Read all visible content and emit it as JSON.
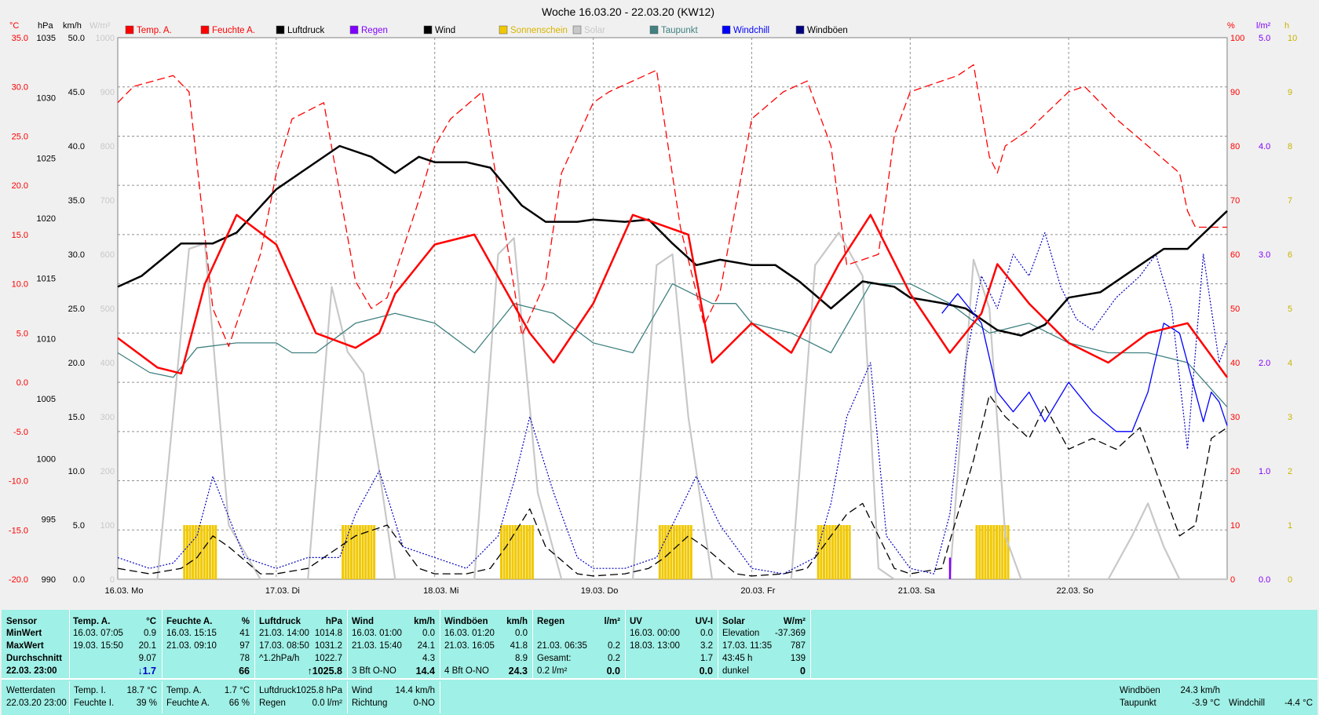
{
  "title": "Woche 16.03.20 - 22.03.20 (KW12)",
  "legend": [
    {
      "label": "Temp. A.",
      "color": "#ff0000"
    },
    {
      "label": "Feuchte A.",
      "color": "#ff0000"
    },
    {
      "label": "Luftdruck",
      "color": "#000000"
    },
    {
      "label": "Regen",
      "color": "#8000ff"
    },
    {
      "label": "Wind",
      "color": "#000000"
    },
    {
      "label": "Sonnenschein",
      "color": "#f0c800"
    },
    {
      "label": "Solar",
      "color": "#c8c8c8"
    },
    {
      "label": "Taupunkt",
      "color": "#408080"
    },
    {
      "label": "Windchill",
      "color": "#0000ff"
    },
    {
      "label": "Windböen",
      "color": "#000080"
    }
  ],
  "axis_units": {
    "temp": "°C",
    "press": "hPa",
    "wind": "km/h",
    "solar": "W/m²",
    "hum": "%",
    "rain": "l/m²",
    "sun": "h"
  },
  "chart_data": {
    "type": "line",
    "title": "Woche 16.03.20 - 22.03.20 (KW12)",
    "x_ticks": [
      "16.03. Mo",
      "17.03. Di",
      "18.03. Mi",
      "19.03. Do",
      "20.03. Fr",
      "21.03. Sa",
      "22.03. So"
    ],
    "axes": {
      "temp": {
        "unit": "°C",
        "range": [
          -20,
          35
        ],
        "ticks": [
          "35.0",
          "30.0",
          "25.0",
          "20.0",
          "15.0",
          "10.0",
          "5.0",
          "0.0",
          "-5.0",
          "-10.0",
          "-15.0",
          "-20.0"
        ]
      },
      "press": {
        "unit": "hPa",
        "range": [
          990,
          1040
        ],
        "ticks": [
          "1035",
          "1030",
          "1025",
          "1020",
          "1015",
          "1010",
          "1005",
          "1000",
          "995",
          "990"
        ]
      },
      "wind": {
        "unit": "km/h",
        "range": [
          0,
          50
        ],
        "ticks": [
          "50.0",
          "45.0",
          "40.0",
          "35.0",
          "30.0",
          "25.0",
          "20.0",
          "15.0",
          "10.0",
          "5.0",
          "0.0"
        ]
      },
      "solar": {
        "unit": "W/m²",
        "range": [
          0,
          1000
        ],
        "ticks": [
          "1000",
          "900",
          "800",
          "700",
          "600",
          "500",
          "400",
          "300",
          "200",
          "100",
          "0"
        ]
      },
      "hum": {
        "unit": "%",
        "range": [
          0,
          100
        ],
        "ticks": [
          "100",
          "90",
          "80",
          "70",
          "60",
          "50",
          "40",
          "30",
          "20",
          "10",
          "0"
        ]
      },
      "rain": {
        "unit": "l/m²",
        "range": [
          0,
          5
        ],
        "ticks": [
          "5.0",
          "4.0",
          "3.0",
          "2.0",
          "1.0",
          "0.0"
        ]
      },
      "sun": {
        "unit": "h",
        "range": [
          0,
          10
        ],
        "ticks": [
          "10",
          "9",
          "8",
          "7",
          "6",
          "5",
          "4",
          "3",
          "2",
          "1",
          "0"
        ]
      }
    },
    "series": [
      {
        "name": "Temp. A.",
        "axis": "temp",
        "x": [
          0,
          0.25,
          0.4,
          0.55,
          0.75,
          1.0,
          1.25,
          1.5,
          1.65,
          1.75,
          2.0,
          2.25,
          2.6,
          2.75,
          3.0,
          3.25,
          3.6,
          3.75,
          4.0,
          4.25,
          4.55,
          4.75,
          5.0,
          5.25,
          5.45,
          5.55,
          5.75,
          6.0,
          6.25,
          6.5,
          6.75,
          7.0
        ],
        "y": [
          4.5,
          1.5,
          0.9,
          10,
          17,
          14,
          5,
          3.5,
          5,
          9,
          14,
          15,
          5,
          2,
          8,
          17,
          15,
          2,
          6,
          3,
          12,
          17,
          9,
          3,
          7,
          12,
          8,
          4,
          2,
          5,
          6,
          0.5
        ]
      },
      {
        "name": "Feuchte A.",
        "axis": "hum",
        "x": [
          0,
          0.1,
          0.35,
          0.45,
          0.6,
          0.7,
          0.9,
          1.0,
          1.1,
          1.3,
          1.5,
          1.6,
          1.7,
          1.9,
          2.0,
          2.1,
          2.3,
          2.55,
          2.7,
          2.8,
          3.0,
          3.1,
          3.4,
          3.55,
          3.7,
          3.8,
          4.0,
          4.2,
          4.35,
          4.5,
          4.6,
          4.8,
          4.9,
          5.0,
          5.1,
          5.3,
          5.4,
          5.5,
          5.55,
          5.6,
          5.75,
          6.0,
          6.1,
          6.3,
          6.5,
          6.7,
          6.75,
          6.8,
          7.0
        ],
        "y": [
          88,
          91,
          93,
          90,
          50,
          43,
          60,
          75,
          85,
          88,
          55,
          50,
          52,
          70,
          80,
          85,
          90,
          45,
          55,
          75,
          88,
          90,
          94,
          65,
          47,
          53,
          85,
          90,
          92,
          80,
          58,
          60,
          82,
          90,
          91,
          93,
          95,
          78,
          75,
          80,
          83,
          90,
          91,
          85,
          80,
          75,
          68,
          65,
          65
        ]
      },
      {
        "name": "Luftdruck",
        "axis": "press",
        "x": [
          0,
          0.15,
          0.4,
          0.6,
          0.75,
          1.0,
          1.2,
          1.4,
          1.6,
          1.75,
          1.9,
          2.0,
          2.2,
          2.35,
          2.55,
          2.7,
          2.9,
          3.0,
          3.2,
          3.35,
          3.5,
          3.65,
          3.8,
          4.0,
          4.15,
          4.3,
          4.5,
          4.7,
          4.9,
          5.0,
          5.2,
          5.35,
          5.55,
          5.7,
          5.85,
          6.0,
          6.2,
          6.4,
          6.6,
          6.75,
          7.0
        ],
        "y": [
          1017,
          1018,
          1021,
          1021,
          1022,
          1026,
          1028,
          1030,
          1029,
          1027.5,
          1029,
          1028.5,
          1028.5,
          1028,
          1024.5,
          1023,
          1023,
          1023.2,
          1023,
          1023.2,
          1021,
          1019,
          1019.5,
          1019,
          1019,
          1017.5,
          1015,
          1017.5,
          1017,
          1016,
          1015.5,
          1015,
          1013,
          1012.5,
          1013.5,
          1016,
          1016.5,
          1018.5,
          1020.5,
          1020.5,
          1024
        ]
      },
      {
        "name": "Taupunkt",
        "axis": "temp",
        "x": [
          0,
          0.2,
          0.35,
          0.5,
          0.75,
          1.0,
          1.1,
          1.25,
          1.5,
          1.75,
          2.0,
          2.25,
          2.5,
          2.75,
          3.0,
          3.25,
          3.5,
          3.75,
          3.9,
          4.0,
          4.25,
          4.5,
          4.75,
          5.0,
          5.25,
          5.5,
          5.75,
          6.0,
          6.25,
          6.5,
          6.75,
          7.0
        ],
        "y": [
          3,
          1,
          0.5,
          3.5,
          4,
          4,
          3,
          3,
          6,
          7,
          6,
          3,
          8,
          7,
          4,
          3,
          10,
          8,
          8,
          6,
          5,
          3,
          10,
          10,
          8,
          5,
          6,
          4,
          3,
          3,
          2,
          -2.5
        ]
      },
      {
        "name": "Windchill",
        "axis": "temp",
        "x": [
          5.2,
          5.3,
          5.45,
          5.55,
          5.65,
          5.75,
          5.85,
          6.0,
          6.15,
          6.3,
          6.4,
          6.5,
          6.6,
          6.7,
          6.8,
          6.85,
          6.9,
          6.95,
          7.0
        ],
        "y": [
          7,
          9,
          6,
          -1,
          -3,
          -1,
          -4,
          0,
          -3,
          -5,
          -5,
          -1,
          6,
          5,
          -1,
          -4,
          -1,
          -2,
          -4.4
        ]
      },
      {
        "name": "Wind",
        "axis": "wind",
        "x": [
          0,
          0.2,
          0.4,
          0.5,
          0.6,
          0.7,
          0.9,
          1.0,
          1.2,
          1.3,
          1.5,
          1.7,
          1.9,
          2.0,
          2.2,
          2.35,
          2.45,
          2.6,
          2.7,
          2.9,
          3.0,
          3.2,
          3.35,
          3.45,
          3.6,
          3.7,
          3.9,
          4.0,
          4.2,
          4.35,
          4.45,
          4.6,
          4.7,
          4.9,
          5.0,
          5.2,
          5.3,
          5.4,
          5.5,
          5.6,
          5.75,
          5.85,
          6.0,
          6.15,
          6.3,
          6.45,
          6.6,
          6.7,
          6.8,
          6.9,
          7.0
        ],
        "y": [
          1,
          0.5,
          1,
          2,
          4,
          3,
          0.5,
          0.5,
          1,
          2,
          4,
          5,
          1,
          0.5,
          0.5,
          1,
          3,
          6.5,
          3,
          0.5,
          0.3,
          0.5,
          1,
          2,
          4,
          3,
          0.5,
          0.3,
          0.5,
          1,
          3,
          6,
          7,
          1,
          0.5,
          1,
          6,
          11,
          17,
          15,
          13,
          16,
          12,
          13,
          12,
          14,
          8,
          4,
          5,
          13,
          14
        ]
      },
      {
        "name": "Windböen",
        "axis": "wind",
        "x": [
          0,
          0.2,
          0.35,
          0.5,
          0.6,
          0.8,
          1.0,
          1.2,
          1.4,
          1.5,
          1.65,
          1.8,
          2.0,
          2.2,
          2.4,
          2.5,
          2.6,
          2.75,
          2.9,
          3.0,
          3.2,
          3.4,
          3.5,
          3.65,
          3.8,
          4.0,
          4.2,
          4.4,
          4.5,
          4.6,
          4.75,
          4.85,
          5.0,
          5.15,
          5.25,
          5.35,
          5.45,
          5.55,
          5.65,
          5.75,
          5.85,
          5.95,
          6.05,
          6.15,
          6.3,
          6.45,
          6.55,
          6.65,
          6.75,
          6.85,
          6.95,
          7.0
        ],
        "y": [
          2,
          1,
          1.5,
          4,
          9.5,
          2,
          1,
          2,
          2,
          6,
          10,
          3,
          2,
          1,
          4,
          9,
          15,
          8,
          2,
          1,
          1,
          2,
          5,
          9.5,
          5,
          1,
          0.5,
          2,
          7,
          15,
          20,
          4,
          1,
          0.5,
          6,
          20,
          28,
          25,
          30,
          28,
          32,
          27,
          24,
          23,
          26,
          28,
          30,
          25,
          12,
          30,
          20,
          22
        ]
      },
      {
        "name": "Solar",
        "axis": "solar",
        "x": [
          0,
          0.25,
          0.45,
          0.55,
          0.7,
          0.9,
          1.0,
          1.2,
          1.35,
          1.45,
          1.55,
          1.65,
          1.75,
          2.0,
          2.25,
          2.4,
          2.5,
          2.65,
          2.8,
          3.0,
          3.25,
          3.4,
          3.5,
          3.6,
          3.75,
          3.85,
          4.0,
          4.25,
          4.4,
          4.55,
          4.7,
          4.8,
          4.9,
          5.0,
          5.25,
          5.4,
          5.5,
          5.6,
          5.7,
          5.8,
          6.0,
          6.25,
          6.4,
          6.5,
          6.6,
          6.7,
          7.0
        ],
        "y": [
          0,
          0,
          610,
          620,
          100,
          0,
          0,
          0,
          540,
          420,
          380,
          200,
          0,
          0,
          0,
          600,
          630,
          160,
          0,
          0,
          0,
          580,
          600,
          300,
          0,
          0,
          0,
          0,
          580,
          640,
          560,
          20,
          0,
          0,
          0,
          590,
          500,
          80,
          0,
          0,
          0,
          0,
          80,
          140,
          60,
          0,
          0
        ]
      },
      {
        "name": "Sonnenschein",
        "axis": "sun",
        "days_bars": [
          [
            0.42,
            0.62
          ],
          [
            1.42,
            1.62
          ],
          [
            2.42,
            2.62
          ],
          [
            3.42,
            3.62
          ],
          [
            4.42,
            4.62
          ],
          [
            5.42,
            5.62
          ]
        ],
        "y": 1
      }
    ]
  },
  "stats": {
    "headers": {
      "sensor": "Sensor",
      "temp": "Temp. A.",
      "temp_u": "°C",
      "hum": "Feuchte A.",
      "hum_u": "%",
      "press": "Luftdruck",
      "press_u": "hPa",
      "wind": "Wind",
      "wind_u": "km/h",
      "gust": "Windböen",
      "gust_u": "km/h",
      "rain": "Regen",
      "rain_u": "l/m²",
      "uv": "UV",
      "uv_u": "UV-I",
      "solar": "Solar",
      "solar_u": "W/m²"
    },
    "rows": [
      "MinWert",
      "MaxWert",
      "Durchschnitt",
      "22.03. 23:00"
    ],
    "temp": [
      [
        "16.03. 07:05",
        "0.9"
      ],
      [
        "19.03. 15:50",
        "20.1"
      ],
      [
        "",
        "9.07"
      ],
      [
        "",
        "↓1.7"
      ]
    ],
    "hum": [
      [
        "16.03. 15:15",
        "41"
      ],
      [
        "21.03. 09:10",
        "97"
      ],
      [
        "",
        "78"
      ],
      [
        "",
        "66"
      ]
    ],
    "press": [
      [
        "21.03. 14:00",
        "1014.8"
      ],
      [
        "17.03. 08:50",
        "1031.2"
      ],
      [
        "^1.2hPa/h",
        "1022.7"
      ],
      [
        "",
        "↑1025.8"
      ]
    ],
    "wind": [
      [
        "16.03. 01:00",
        "0.0"
      ],
      [
        "21.03. 15:40",
        "24.1"
      ],
      [
        "",
        "4.3"
      ],
      [
        "3 Bft O-NO",
        "14.4"
      ]
    ],
    "gust": [
      [
        "16.03. 01:20",
        "0.0"
      ],
      [
        "21.03. 16:05",
        "41.8"
      ],
      [
        "",
        "8.9"
      ],
      [
        "4 Bft O-NO",
        "24.3"
      ]
    ],
    "rain": [
      [
        "",
        ""
      ],
      [
        "21.03. 06:35",
        "0.2"
      ],
      [
        "Gesamt:",
        "0.2"
      ],
      [
        "0.2 l/m²",
        "0.0"
      ]
    ],
    "uv": [
      [
        "16.03. 00:00",
        "0.0"
      ],
      [
        "18.03. 13:00",
        "3.2"
      ],
      [
        "",
        "1.7"
      ],
      [
        "",
        "0.0"
      ]
    ],
    "solar": [
      [
        "Elevation",
        "-37.369"
      ],
      [
        "17.03. 11:35",
        "787"
      ],
      [
        "43:45 h",
        "139"
      ],
      [
        "dunkel",
        "0"
      ]
    ]
  },
  "footer": {
    "wetter_label": "Wetterdaten",
    "wetter_date": "22.03.20 23:00",
    "temp_i_label": "Temp. I.",
    "temp_i": "18.7 °C",
    "feuchte_i_label": "Feuchte I.",
    "feuchte_i": "39 %",
    "temp_a_label": "Temp. A.",
    "temp_a": "1.7 °C",
    "feuchte_a_label": "Feuchte A.",
    "feuchte_a": "66 %",
    "luft_label": "Luftdruck",
    "luft": "1025.8 hPa",
    "regen_label": "Regen",
    "regen": "0.0 l/m²",
    "wind_label": "Wind",
    "wind": "14.4 km/h",
    "richtung_label": "Richtung",
    "richtung": "0-NO",
    "boen_label": "Windböen",
    "boen": "24.3 km/h",
    "tau_label": "Taupunkt",
    "tau": "-3.9 °C",
    "chill_label": "Windchill",
    "chill": "-4.4 °C"
  }
}
